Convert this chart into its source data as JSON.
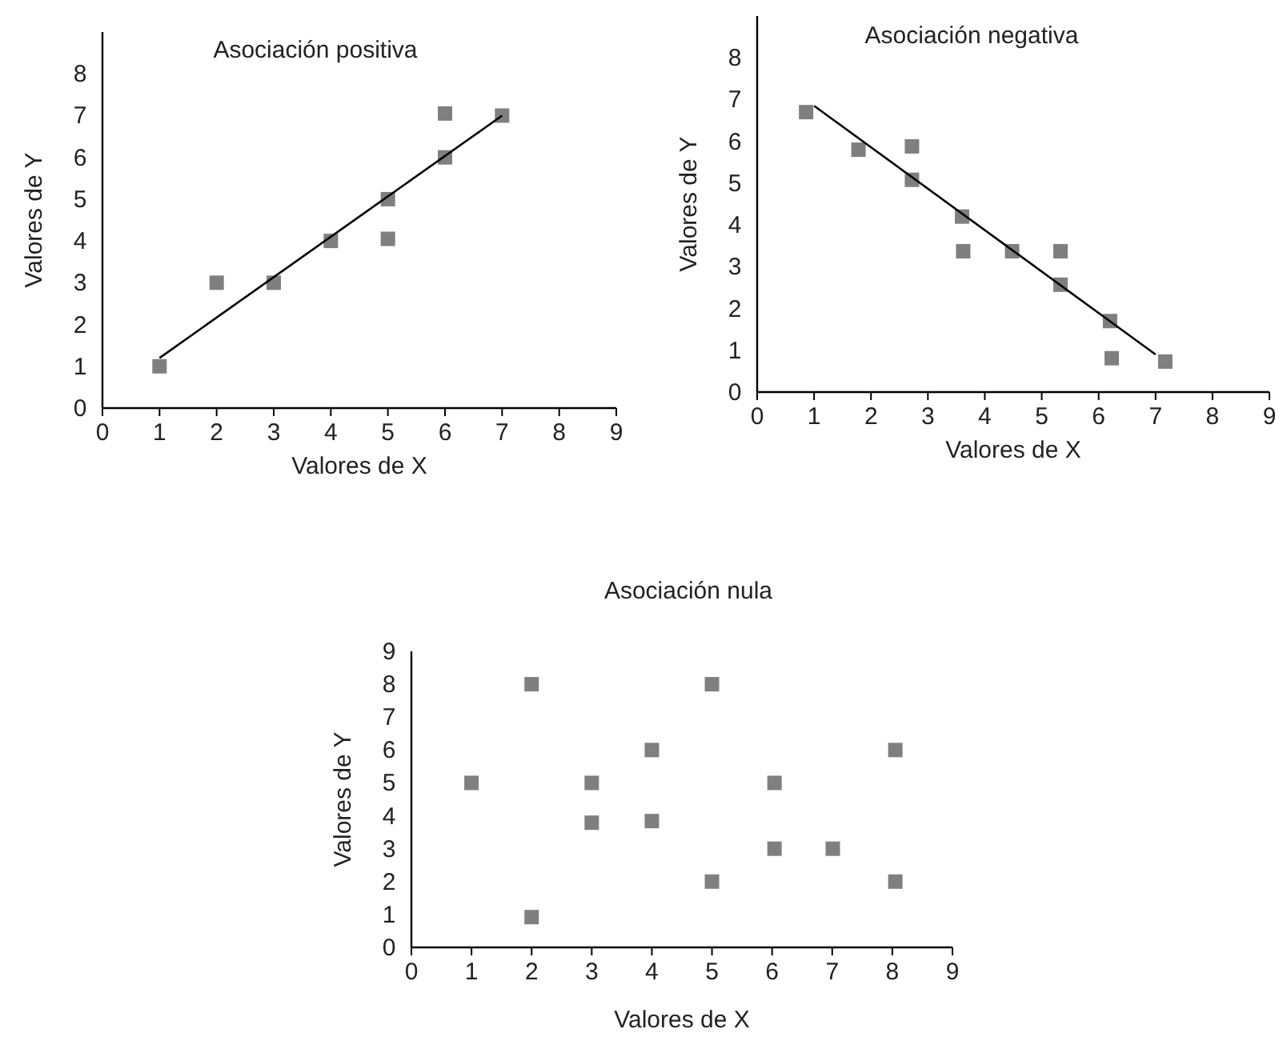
{
  "chart_data": [
    {
      "type": "scatter",
      "title": "Asociación positiva",
      "xlabel": "Valores de X",
      "ylabel": "Valores de Y",
      "xlim": [
        0,
        9
      ],
      "ylim": [
        0,
        9
      ],
      "xticks": [
        0,
        1,
        2,
        3,
        4,
        5,
        6,
        7,
        8,
        9
      ],
      "yticks": [
        0,
        1,
        2,
        3,
        4,
        5,
        6,
        7,
        8
      ],
      "series": [
        {
          "color": "#7f7f7f",
          "marker": "square",
          "x": [
            1,
            2,
            3,
            4,
            5,
            5,
            6,
            6,
            7
          ],
          "values": [
            1,
            3,
            3,
            4,
            5,
            4.05,
            6,
            7.05,
            7
          ]
        },
        {
          "type": "line",
          "marker": "none",
          "color": "#000000",
          "x": [
            1,
            7
          ],
          "values": [
            1.2,
            7
          ]
        }
      ]
    },
    {
      "type": "scatter",
      "title": "Asociación negativa",
      "xlabel": "Valores de X",
      "ylabel": "Valores de Y",
      "xlim": [
        0,
        9
      ],
      "ylim": [
        0,
        9
      ],
      "xticks": [
        0,
        1,
        2,
        3,
        4,
        5,
        6,
        7,
        8,
        9
      ],
      "yticks": [
        0,
        1,
        2,
        3,
        4,
        5,
        6,
        7,
        8
      ],
      "series": [
        {
          "color": "#7f7f7f",
          "marker": "square",
          "x": [
            0.86,
            1.78,
            2.72,
            2.72,
            3.6,
            3.62,
            4.48,
            5.33,
            5.33,
            6.2,
            6.23,
            7.17
          ],
          "values": [
            6.7,
            5.8,
            5.88,
            5.08,
            4.2,
            3.37,
            3.37,
            3.37,
            2.57,
            1.7,
            0.81,
            0.73
          ]
        },
        {
          "type": "line",
          "marker": "none",
          "color": "#000000",
          "x": [
            1,
            7
          ],
          "values": [
            6.85,
            0.9
          ]
        }
      ]
    },
    {
      "type": "scatter",
      "title": "Asociación nula",
      "xlabel": "Valores de X",
      "ylabel": "Valores de Y",
      "xlim": [
        0,
        9
      ],
      "ylim": [
        0,
        9
      ],
      "xticks": [
        0,
        1,
        2,
        3,
        4,
        5,
        6,
        7,
        8,
        9
      ],
      "yticks": [
        0,
        1,
        2,
        3,
        4,
        5,
        6,
        7,
        8,
        9
      ],
      "series": [
        {
          "color": "#7f7f7f",
          "marker": "square",
          "x": [
            1,
            2,
            2,
            3,
            3,
            4,
            4,
            5,
            5,
            6.04,
            6.04,
            7.01,
            8.05,
            8.05
          ],
          "values": [
            5,
            8,
            0.92,
            5,
            3.79,
            6,
            3.84,
            8,
            2,
            5,
            3,
            3,
            6,
            2
          ]
        }
      ]
    }
  ]
}
